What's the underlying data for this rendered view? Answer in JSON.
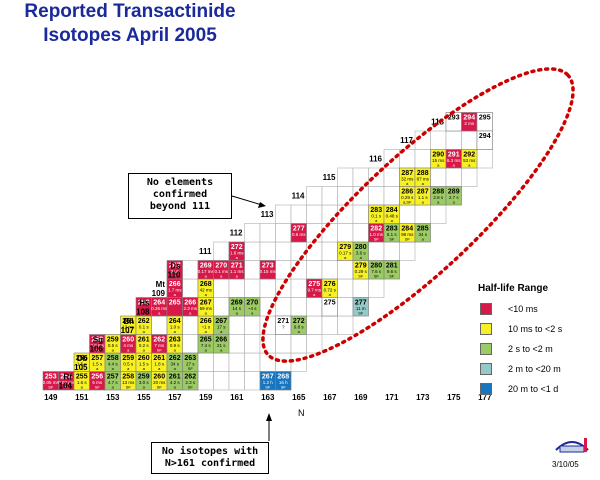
{
  "title_lines": [
    "Reported Transactinide",
    "Isotopes April 2005"
  ],
  "callout_elements": [
    "No elements",
    "confirmed",
    "beyond 111"
  ],
  "callout_isotopes": [
    "No isotopes with",
    "N>161 confirmed"
  ],
  "axis_label": "N",
  "n_ticks": [
    "149",
    "151",
    "153",
    "155",
    "157",
    "159",
    "161",
    "163",
    "165",
    "167",
    "169",
    "171",
    "173",
    "175",
    "177"
  ],
  "legend": {
    "title": "Half-life Range",
    "items": [
      {
        "label": "<10 ms",
        "color": "#d9184a"
      },
      {
        "label": "10 ms to <2 s",
        "color": "#f7f025"
      },
      {
        "label": "2 s to <2 m",
        "color": "#9ccb65"
      },
      {
        "label": "2 m  to <20 m",
        "color": "#93c9c8"
      },
      {
        "label": "20 m  to <1 d",
        "color": "#1875c0"
      }
    ]
  },
  "date": "3/10/05",
  "elements": [
    {
      "sym": "Rf",
      "z": "104"
    },
    {
      "sym": "Db",
      "z": "105"
    },
    {
      "sym": "Sg",
      "z": "106"
    },
    {
      "sym": "Bh",
      "z": "107"
    },
    {
      "sym": "Hs",
      "z": "108"
    },
    {
      "sym": "Mt",
      "z": "109"
    },
    {
      "sym": "Ds",
      "z": "110"
    },
    {
      "sym": "",
      "z": "111"
    },
    {
      "sym": "",
      "z": "112"
    },
    {
      "sym": "",
      "z": "113"
    },
    {
      "sym": "",
      "z": "114"
    },
    {
      "sym": "",
      "z": "115"
    },
    {
      "sym": "",
      "z": "116"
    },
    {
      "sym": "",
      "z": "117"
    },
    {
      "sym": "",
      "z": "118"
    }
  ],
  "isotopes": [
    {
      "z": 104,
      "a": "253",
      "hl": "0.05 ms",
      "d": "SF",
      "c": "r"
    },
    {
      "z": 104,
      "a": "254",
      "hl": "0.02 ms",
      "d": "SF",
      "c": "r"
    },
    {
      "z": 104,
      "a": "255",
      "hl": "1.6 s",
      "d": "a",
      "c": "y"
    },
    {
      "z": 104,
      "a": "256",
      "hl": "6 ms",
      "d": "SF",
      "c": "r"
    },
    {
      "z": 104,
      "a": "257",
      "hl": "4.7 s",
      "d": "a",
      "c": "g"
    },
    {
      "z": 104,
      "a": "258",
      "hl": "13 ms",
      "d": "SF",
      "c": "y"
    },
    {
      "z": 104,
      "a": "259",
      "hl": "3.0 s",
      "d": "a",
      "c": "g"
    },
    {
      "z": 104,
      "a": "260",
      "hl": "20 ms",
      "d": "SF",
      "c": "y"
    },
    {
      "z": 104,
      "a": "261",
      "hl": "4.2 s",
      "d": "a",
      "c": "g"
    },
    {
      "z": 104,
      "a": "262",
      "hl": "2.3 s",
      "d": "SF",
      "c": "g"
    },
    {
      "z": 104,
      "a": "267",
      "hl": "1.2 h",
      "d": "SF",
      "c": "b"
    },
    {
      "z": 104,
      "a": "268",
      "hl": "16 h",
      "d": "SF",
      "c": "b"
    },
    {
      "z": 105,
      "a": "256",
      "hl": "1.5 s",
      "d": "a",
      "c": "y"
    },
    {
      "z": 105,
      "a": "257",
      "hl": "1.5 s",
      "d": "a",
      "c": "y"
    },
    {
      "z": 105,
      "a": "258",
      "hl": "4.4 s",
      "d": "a",
      "c": "g"
    },
    {
      "z": 105,
      "a": "259",
      "hl": "0.5 s",
      "d": "a",
      "c": "y"
    },
    {
      "z": 105,
      "a": "260",
      "hl": "1.5 s",
      "d": "a",
      "c": "y"
    },
    {
      "z": 105,
      "a": "261",
      "hl": "1.8 s",
      "d": "a",
      "c": "y"
    },
    {
      "z": 105,
      "a": "262",
      "hl": "34 s",
      "d": "a",
      "c": "g"
    },
    {
      "z": 105,
      "a": "263",
      "hl": "27 s",
      "d": "SF",
      "c": "g"
    },
    {
      "z": 106,
      "a": "258",
      "hl": "2.9 ms",
      "d": "SF",
      "c": "r"
    },
    {
      "z": 106,
      "a": "259",
      "hl": "0.5 s",
      "d": "a",
      "c": "y"
    },
    {
      "z": 106,
      "a": "260",
      "hl": "4 ms",
      "d": "a",
      "c": "r"
    },
    {
      "z": 106,
      "a": "261",
      "hl": "0.2 s",
      "d": "a",
      "c": "y"
    },
    {
      "z": 106,
      "a": "262",
      "hl": "7 ms",
      "d": "SF",
      "c": "r"
    },
    {
      "z": 106,
      "a": "263",
      "hl": "0.9 s",
      "d": "a",
      "c": "y"
    },
    {
      "z": 106,
      "a": "265",
      "hl": "7.4 s",
      "d": "a",
      "c": "g"
    },
    {
      "z": 106,
      "a": "266",
      "hl": "21 s",
      "d": "a",
      "c": "g"
    },
    {
      "z": 107,
      "a": "261",
      "hl": "12 ms",
      "d": "a",
      "c": "y"
    },
    {
      "z": 107,
      "a": "262",
      "hl": "0.1 s",
      "d": "a",
      "c": "y"
    },
    {
      "z": 107,
      "a": "264",
      "hl": "1.0 s",
      "d": "a",
      "c": "y"
    },
    {
      "z": 107,
      "a": "266",
      "hl": "~1 s",
      "d": "a",
      "c": "y"
    },
    {
      "z": 107,
      "a": "267",
      "hl": "17 s",
      "d": "a",
      "c": "g"
    },
    {
      "z": 107,
      "a": "271",
      "hl": "?",
      "d": "",
      "c": "w"
    },
    {
      "z": 107,
      "a": "272",
      "hl": "9.8 s",
      "d": "a",
      "c": "g"
    },
    {
      "z": 108,
      "a": "263",
      "hl": "",
      "d": "",
      "c": "r"
    },
    {
      "z": 108,
      "a": "264",
      "hl": "0.26 ms",
      "d": "a",
      "c": "r"
    },
    {
      "z": 108,
      "a": "265",
      "hl": "",
      "d": "",
      "c": "r"
    },
    {
      "z": 108,
      "a": "266",
      "hl": "2.3 ms",
      "d": "a",
      "c": "r"
    },
    {
      "z": 108,
      "a": "267",
      "hl": "59 ms",
      "d": "a",
      "c": "y"
    },
    {
      "z": 108,
      "a": "269",
      "hl": "14 s",
      "d": "a",
      "c": "g"
    },
    {
      "z": 108,
      "a": "270",
      "hl": "~4 s",
      "d": "a",
      "c": "g"
    },
    {
      "z": 108,
      "a": "275",
      "hl": "",
      "d": "",
      "c": "w"
    },
    {
      "z": 108,
      "a": "277",
      "hl": "11 m",
      "d": "SF",
      "c": "t"
    },
    {
      "z": 109,
      "a": "266",
      "hl": "1.7 ms",
      "d": "a",
      "c": "r"
    },
    {
      "z": 109,
      "a": "268",
      "hl": "42 ms",
      "d": "a",
      "c": "y"
    },
    {
      "z": 109,
      "a": "275",
      "hl": "9.7 ms",
      "d": "a",
      "c": "r"
    },
    {
      "z": 109,
      "a": "276",
      "hl": "0.72 s",
      "d": "a",
      "c": "y"
    },
    {
      "z": 110,
      "a": "267",
      "hl": "3 us",
      "d": "a",
      "c": "r"
    },
    {
      "z": 110,
      "a": "269",
      "hl": "0.17 ms",
      "d": "a",
      "c": "r"
    },
    {
      "z": 110,
      "a": "270",
      "hl": "0.1 ms",
      "d": "a",
      "c": "r"
    },
    {
      "z": 110,
      "a": "271",
      "hl": "1.1 ms",
      "d": "a",
      "c": "r"
    },
    {
      "z": 110,
      "a": "273",
      "hl": "0.15 ms",
      "d": "",
      "c": "r"
    },
    {
      "z": 110,
      "a": "279",
      "hl": "0.29 s",
      "d": "SF",
      "c": "y"
    },
    {
      "z": 110,
      "a": "280",
      "hl": "7.6 s",
      "d": "SF",
      "c": "g"
    },
    {
      "z": 110,
      "a": "281",
      "hl": "9.6 s",
      "d": "SF",
      "c": "g"
    },
    {
      "z": 111,
      "a": "272",
      "hl": "1.6 ms",
      "d": "a",
      "c": "r"
    },
    {
      "z": 111,
      "a": "279",
      "hl": "0.17 s",
      "d": "a",
      "c": "y"
    },
    {
      "z": 111,
      "a": "280",
      "hl": "3.6 s",
      "d": "a",
      "c": "g"
    },
    {
      "z": 112,
      "a": "277",
      "hl": "0.6 ms",
      "d": "",
      "c": "r"
    },
    {
      "z": 112,
      "a": "282",
      "hl": "1.0 ms",
      "d": "SF",
      "c": "r"
    },
    {
      "z": 112,
      "a": "283",
      "hl": "6.1 s",
      "d": "SF",
      "c": "g"
    },
    {
      "z": 112,
      "a": "284",
      "hl": "98 ms",
      "d": "SF",
      "c": "y"
    },
    {
      "z": 112,
      "a": "285",
      "hl": "34 s",
      "d": "a",
      "c": "g"
    },
    {
      "z": 113,
      "a": "283",
      "hl": "0.1 s",
      "d": "a",
      "c": "y"
    },
    {
      "z": 113,
      "a": "284",
      "hl": "0.48 s",
      "d": "a",
      "c": "y"
    },
    {
      "z": 114,
      "a": "286",
      "hl": "0.29 s",
      "d": "a,SF",
      "c": "y"
    },
    {
      "z": 114,
      "a": "287",
      "hl": "1.1 s",
      "d": "a",
      "c": "y"
    },
    {
      "z": 114,
      "a": "288",
      "hl": "2.8 s",
      "d": "a",
      "c": "g"
    },
    {
      "z": 114,
      "a": "289",
      "hl": "2.7 s",
      "d": "a",
      "c": "g"
    },
    {
      "z": 115,
      "a": "287",
      "hl": "32 ms",
      "d": "a",
      "c": "y"
    },
    {
      "z": 115,
      "a": "288",
      "hl": "87 ms",
      "d": "a",
      "c": "y"
    },
    {
      "z": 116,
      "a": "290",
      "hl": "15 ms",
      "d": "a",
      "c": "y"
    },
    {
      "z": 116,
      "a": "291",
      "hl": "6.3 ms",
      "d": "a",
      "c": "r"
    },
    {
      "z": 116,
      "a": "292",
      "hl": "53 ms",
      "d": "a",
      "c": "y"
    },
    {
      "z": 118,
      "a": "293",
      "hl": "",
      "d": "",
      "c": "w"
    },
    {
      "z": 118,
      "a": "294",
      "hl": "2 ms",
      "d": "",
      "c": "r"
    },
    {
      "z": 118,
      "a": "295",
      "hl": "",
      "d": "",
      "c": "w"
    },
    {
      "z": 117,
      "a": "294",
      "hl": "",
      "d": "",
      "c": "w"
    }
  ]
}
